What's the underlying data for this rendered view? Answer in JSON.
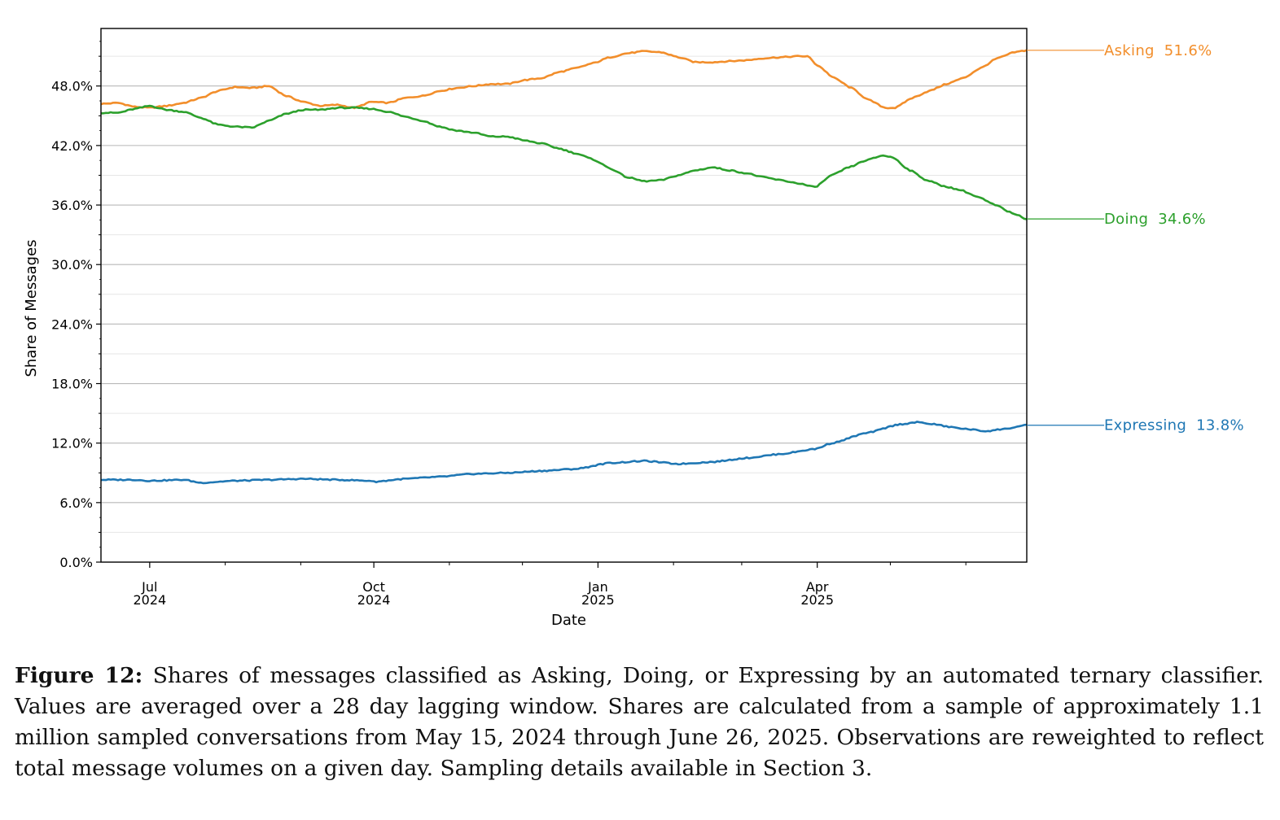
{
  "chart_data": {
    "type": "line",
    "xlabel": "Date",
    "ylabel": "Share of Messages",
    "ylim": [
      0,
      53.8
    ],
    "xlim": [
      "2024-06-11",
      "2025-06-26"
    ],
    "yticks": [
      0,
      6,
      12,
      18,
      24,
      30,
      36,
      42,
      48
    ],
    "ytick_labels": [
      "0.0%",
      "6.0%",
      "12.0%",
      "18.0%",
      "24.0%",
      "30.0%",
      "36.0%",
      "42.0%",
      "48.0%"
    ],
    "xticks": [
      {
        "date": "2024-07-01",
        "line1": "Jul",
        "line2": "2024"
      },
      {
        "date": "2024-10-01",
        "line1": "Oct",
        "line2": "2024"
      },
      {
        "date": "2025-01-01",
        "line1": "Jan",
        "line2": "2025"
      },
      {
        "date": "2025-04-01",
        "line1": "Apr",
        "line2": "2025"
      }
    ],
    "minor_ticks": [
      "2024-08-01",
      "2024-09-01",
      "2024-11-01",
      "2024-12-01",
      "2025-02-01",
      "2025-03-01",
      "2025-05-01",
      "2025-06-01"
    ],
    "grid": true,
    "series": [
      {
        "name": "Asking",
        "end_label": "Asking  51.6%",
        "color": "#f28e2b",
        "points": [
          [
            "2024-06-11",
            46.2
          ],
          [
            "2024-06-18",
            46.3
          ],
          [
            "2024-06-25",
            45.9
          ],
          [
            "2024-07-01",
            45.8
          ],
          [
            "2024-07-08",
            46.0
          ],
          [
            "2024-07-15",
            46.3
          ],
          [
            "2024-07-22",
            46.8
          ],
          [
            "2024-07-29",
            47.5
          ],
          [
            "2024-08-05",
            47.9
          ],
          [
            "2024-08-12",
            47.8
          ],
          [
            "2024-08-19",
            48.0
          ],
          [
            "2024-08-26",
            47.0
          ],
          [
            "2024-09-02",
            46.4
          ],
          [
            "2024-09-09",
            46.0
          ],
          [
            "2024-09-16",
            46.1
          ],
          [
            "2024-09-23",
            45.8
          ],
          [
            "2024-09-30",
            46.4
          ],
          [
            "2024-10-07",
            46.3
          ],
          [
            "2024-10-14",
            46.8
          ],
          [
            "2024-10-21",
            47.0
          ],
          [
            "2024-10-28",
            47.5
          ],
          [
            "2024-11-04",
            47.8
          ],
          [
            "2024-11-11",
            48.0
          ],
          [
            "2024-11-18",
            48.2
          ],
          [
            "2024-11-25",
            48.2
          ],
          [
            "2024-12-02",
            48.6
          ],
          [
            "2024-12-09",
            48.8
          ],
          [
            "2024-12-16",
            49.4
          ],
          [
            "2024-12-23",
            49.8
          ],
          [
            "2024-12-30",
            50.3
          ],
          [
            "2025-01-06",
            50.9
          ],
          [
            "2025-01-13",
            51.3
          ],
          [
            "2025-01-20",
            51.5
          ],
          [
            "2025-01-27",
            51.4
          ],
          [
            "2025-02-03",
            50.9
          ],
          [
            "2025-02-10",
            50.4
          ],
          [
            "2025-02-17",
            50.4
          ],
          [
            "2025-02-24",
            50.5
          ],
          [
            "2025-03-03",
            50.6
          ],
          [
            "2025-03-10",
            50.8
          ],
          [
            "2025-03-17",
            50.9
          ],
          [
            "2025-03-24",
            51.0
          ],
          [
            "2025-03-28",
            51.0
          ],
          [
            "2025-04-01",
            50.1
          ],
          [
            "2025-04-08",
            48.8
          ],
          [
            "2025-04-15",
            47.8
          ],
          [
            "2025-04-22",
            46.6
          ],
          [
            "2025-04-29",
            45.8
          ],
          [
            "2025-05-03",
            45.8
          ],
          [
            "2025-05-10",
            46.8
          ],
          [
            "2025-05-17",
            47.5
          ],
          [
            "2025-05-24",
            48.2
          ],
          [
            "2025-05-31",
            48.8
          ],
          [
            "2025-06-07",
            49.8
          ],
          [
            "2025-06-14",
            50.8
          ],
          [
            "2025-06-21",
            51.4
          ],
          [
            "2025-06-26",
            51.6
          ]
        ]
      },
      {
        "name": "Doing",
        "end_label": "Doing  34.6%",
        "color": "#2ca02c",
        "points": [
          [
            "2024-06-11",
            45.3
          ],
          [
            "2024-06-18",
            45.3
          ],
          [
            "2024-06-25",
            45.7
          ],
          [
            "2024-07-01",
            46.0
          ],
          [
            "2024-07-08",
            45.6
          ],
          [
            "2024-07-15",
            45.4
          ],
          [
            "2024-07-22",
            44.8
          ],
          [
            "2024-07-29",
            44.1
          ],
          [
            "2024-08-05",
            43.9
          ],
          [
            "2024-08-12",
            43.8
          ],
          [
            "2024-08-19",
            44.5
          ],
          [
            "2024-08-26",
            45.2
          ],
          [
            "2024-09-02",
            45.6
          ],
          [
            "2024-09-09",
            45.6
          ],
          [
            "2024-09-16",
            45.8
          ],
          [
            "2024-09-23",
            45.8
          ],
          [
            "2024-09-30",
            45.7
          ],
          [
            "2024-10-07",
            45.4
          ],
          [
            "2024-10-14",
            44.9
          ],
          [
            "2024-10-21",
            44.5
          ],
          [
            "2024-10-28",
            43.9
          ],
          [
            "2024-11-04",
            43.5
          ],
          [
            "2024-11-11",
            43.3
          ],
          [
            "2024-11-18",
            42.9
          ],
          [
            "2024-11-25",
            42.9
          ],
          [
            "2024-12-02",
            42.5
          ],
          [
            "2024-12-09",
            42.2
          ],
          [
            "2024-12-16",
            41.7
          ],
          [
            "2024-12-23",
            41.2
          ],
          [
            "2024-12-30",
            40.6
          ],
          [
            "2025-01-06",
            39.7
          ],
          [
            "2025-01-13",
            38.8
          ],
          [
            "2025-01-20",
            38.4
          ],
          [
            "2025-01-27",
            38.5
          ],
          [
            "2025-02-03",
            39.0
          ],
          [
            "2025-02-10",
            39.5
          ],
          [
            "2025-02-17",
            39.8
          ],
          [
            "2025-02-24",
            39.5
          ],
          [
            "2025-03-03",
            39.2
          ],
          [
            "2025-03-10",
            38.8
          ],
          [
            "2025-03-17",
            38.5
          ],
          [
            "2025-03-24",
            38.2
          ],
          [
            "2025-03-31",
            37.8
          ],
          [
            "2025-04-07",
            39.0
          ],
          [
            "2025-04-14",
            39.8
          ],
          [
            "2025-04-21",
            40.5
          ],
          [
            "2025-04-28",
            41.0
          ],
          [
            "2025-05-02",
            40.8
          ],
          [
            "2025-05-09",
            39.5
          ],
          [
            "2025-05-16",
            38.5
          ],
          [
            "2025-05-23",
            37.9
          ],
          [
            "2025-05-30",
            37.5
          ],
          [
            "2025-06-06",
            36.8
          ],
          [
            "2025-06-13",
            36.0
          ],
          [
            "2025-06-20",
            35.2
          ],
          [
            "2025-06-26",
            34.6
          ]
        ]
      },
      {
        "name": "Expressing",
        "end_label": "Expressing  13.8%",
        "color": "#1f77b4",
        "points": [
          [
            "2024-06-11",
            8.3
          ],
          [
            "2024-06-25",
            8.3
          ],
          [
            "2024-07-01",
            8.2
          ],
          [
            "2024-07-15",
            8.3
          ],
          [
            "2024-07-22",
            8.0
          ],
          [
            "2024-08-05",
            8.2
          ],
          [
            "2024-08-19",
            8.3
          ],
          [
            "2024-09-02",
            8.4
          ],
          [
            "2024-09-16",
            8.3
          ],
          [
            "2024-09-30",
            8.2
          ],
          [
            "2024-10-01",
            8.1
          ],
          [
            "2024-10-14",
            8.4
          ],
          [
            "2024-10-28",
            8.6
          ],
          [
            "2024-11-11",
            8.9
          ],
          [
            "2024-11-25",
            9.0
          ],
          [
            "2024-12-09",
            9.2
          ],
          [
            "2024-12-23",
            9.4
          ],
          [
            "2025-01-06",
            10.0
          ],
          [
            "2025-01-20",
            10.2
          ],
          [
            "2025-02-03",
            9.9
          ],
          [
            "2025-02-17",
            10.1
          ],
          [
            "2025-03-03",
            10.5
          ],
          [
            "2025-03-17",
            10.9
          ],
          [
            "2025-03-31",
            11.4
          ],
          [
            "2025-04-07",
            12.0
          ],
          [
            "2025-04-21",
            13.0
          ],
          [
            "2025-05-05",
            13.9
          ],
          [
            "2025-05-12",
            14.1
          ],
          [
            "2025-05-19",
            13.9
          ],
          [
            "2025-05-26",
            13.6
          ],
          [
            "2025-06-02",
            13.4
          ],
          [
            "2025-06-09",
            13.2
          ],
          [
            "2025-06-16",
            13.4
          ],
          [
            "2025-06-26",
            13.8
          ]
        ]
      }
    ]
  },
  "caption": {
    "label": "Figure 12:",
    "text": " Shares of messages classified as Asking, Doing, or Expressing by an automated ternary classifier. Values are averaged over a 28 day lagging window. Shares are calculated from a sample of approximately 1.1 million sampled conversations from May 15, 2024 through June 26, 2025. Observations are reweighted to reflect total message volumes on a given day. Sampling details available in Section 3."
  }
}
